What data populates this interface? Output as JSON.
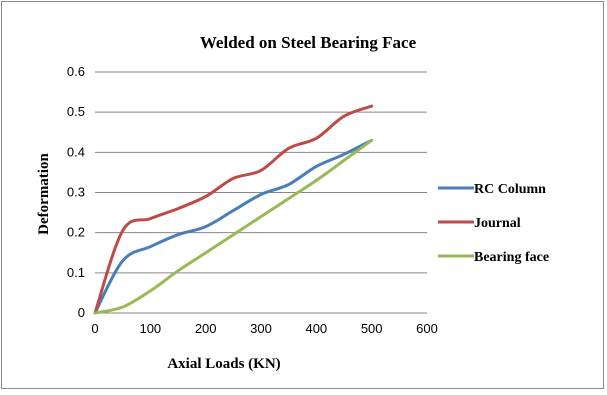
{
  "chart_data": {
    "type": "line",
    "title": "Welded on Steel Bearing Face",
    "xlabel": "Axial Loads (KN)",
    "ylabel": "Deformation",
    "xlim": [
      0,
      600
    ],
    "ylim": [
      0,
      0.6
    ],
    "xticks": [
      "0",
      "100",
      "200",
      "300",
      "400",
      "500",
      "600"
    ],
    "yticks": [
      "0",
      "0.1",
      "0.2",
      "0.3",
      "0.4",
      "0.5",
      "0.6"
    ],
    "grid": "horizontal",
    "legend_position": "right",
    "series": [
      {
        "name": "RC Column",
        "color": "#4a7ebb",
        "x": [
          0,
          50,
          100,
          150,
          200,
          250,
          300,
          350,
          400,
          450,
          500
        ],
        "values": [
          0,
          0.13,
          0.165,
          0.195,
          0.215,
          0.255,
          0.295,
          0.32,
          0.365,
          0.395,
          0.43
        ]
      },
      {
        "name": "Journal",
        "color": "#be4b48",
        "x": [
          0,
          50,
          100,
          150,
          200,
          250,
          300,
          350,
          400,
          450,
          500
        ],
        "values": [
          0,
          0.205,
          0.235,
          0.26,
          0.29,
          0.335,
          0.355,
          0.41,
          0.435,
          0.49,
          0.515
        ]
      },
      {
        "name": "Bearing face",
        "color": "#98b954",
        "x": [
          0,
          50,
          100,
          150,
          200,
          250,
          300,
          350,
          400,
          450,
          500
        ],
        "values": [
          0,
          0.015,
          0.055,
          0.105,
          0.15,
          0.195,
          0.24,
          0.285,
          0.33,
          0.38,
          0.43
        ]
      }
    ]
  }
}
